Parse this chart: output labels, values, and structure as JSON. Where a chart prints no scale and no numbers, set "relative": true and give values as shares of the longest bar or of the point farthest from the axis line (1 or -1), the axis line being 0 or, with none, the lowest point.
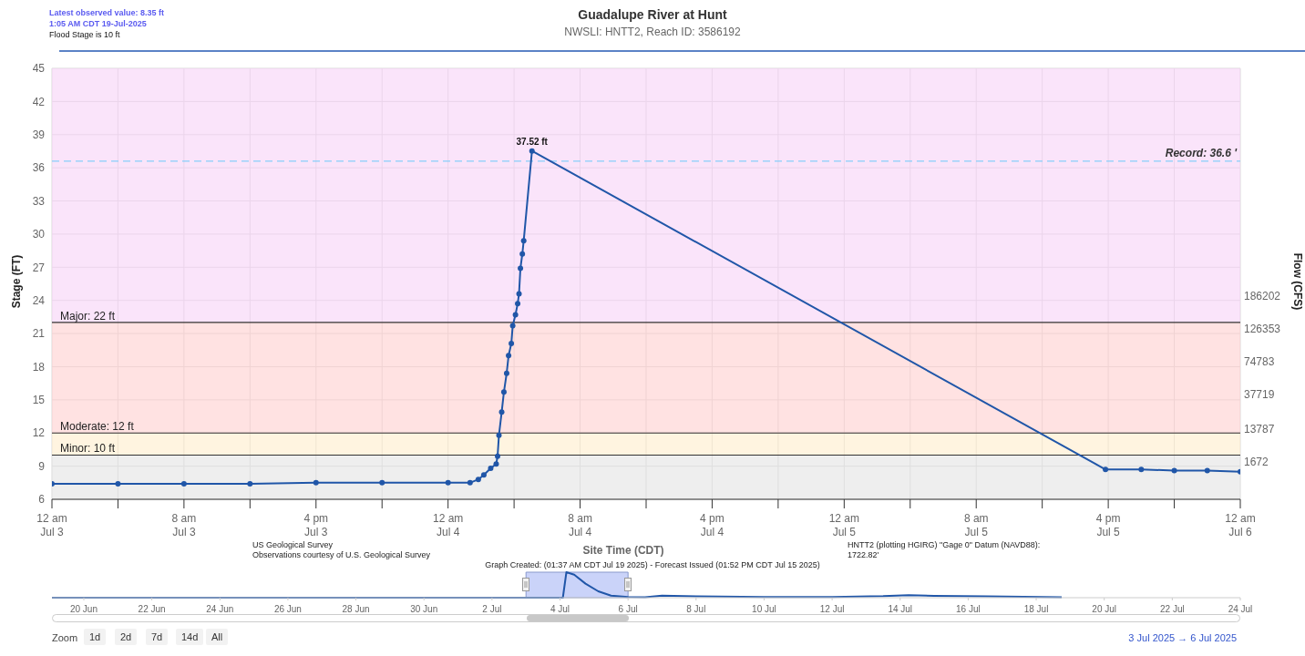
{
  "chart_data": [
    {
      "type": "line",
      "title": "Guadalupe River at Hunt",
      "subtitle": "NWSLI: HNTT2, Reach ID: 3586192",
      "xlabel": "Site Time (CDT)",
      "ylabel": "Stage (FT)",
      "y2label": "Flow (CFS)",
      "xlim": [
        "2025-07-03T00:00",
        "2025-07-06T00:00"
      ],
      "xticks": [
        {
          "value": "2025-07-03T00:00",
          "label": "12 am\nJul 3"
        },
        {
          "value": "2025-07-03T04:00",
          "label": null
        },
        {
          "value": "2025-07-03T08:00",
          "label": "8 am\nJul 3"
        },
        {
          "value": "2025-07-03T12:00",
          "label": null
        },
        {
          "value": "2025-07-03T16:00",
          "label": "4 pm\nJul 3"
        },
        {
          "value": "2025-07-03T20:00",
          "label": null
        },
        {
          "value": "2025-07-04T00:00",
          "label": "12 am\nJul 4"
        },
        {
          "value": "2025-07-04T04:00",
          "label": null
        },
        {
          "value": "2025-07-04T08:00",
          "label": "8 am\nJul 4"
        },
        {
          "value": "2025-07-04T12:00",
          "label": null
        },
        {
          "value": "2025-07-04T16:00",
          "label": "4 pm\nJul 4"
        },
        {
          "value": "2025-07-04T20:00",
          "label": null
        },
        {
          "value": "2025-07-05T00:00",
          "label": "12 am\nJul 5"
        },
        {
          "value": "2025-07-05T04:00",
          "label": null
        },
        {
          "value": "2025-07-05T08:00",
          "label": "8 am\nJul 5"
        },
        {
          "value": "2025-07-05T12:00",
          "label": null
        },
        {
          "value": "2025-07-05T16:00",
          "label": "4 pm\nJul 5"
        },
        {
          "value": "2025-07-05T20:00",
          "label": null
        },
        {
          "value": "2025-07-06T00:00",
          "label": "12 am\nJul 6"
        }
      ],
      "ylim": [
        6,
        45
      ],
      "yticks": [
        6,
        9,
        12,
        15,
        18,
        21,
        24,
        27,
        30,
        33,
        36,
        39,
        42,
        45
      ],
      "grid": true,
      "marker": "circle",
      "line_style": "solid",
      "series": [
        {
          "color": "#2056a8",
          "x": [
            "2025-07-03T00:00",
            "2025-07-03T04:00",
            "2025-07-03T08:00",
            "2025-07-03T12:00",
            "2025-07-03T16:00",
            "2025-07-03T20:00",
            "2025-07-04T00:00",
            "2025-07-04T01:20",
            "2025-07-04T01:50",
            "2025-07-04T02:10",
            "2025-07-04T02:35",
            "2025-07-04T02:55",
            "2025-07-04T03:00",
            "2025-07-04T03:05",
            "2025-07-04T03:15",
            "2025-07-04T03:23",
            "2025-07-04T03:33",
            "2025-07-04T03:40",
            "2025-07-04T03:50",
            "2025-07-04T03:55",
            "2025-07-04T04:05",
            "2025-07-04T04:13",
            "2025-07-04T04:18",
            "2025-07-04T04:23",
            "2025-07-04T04:30",
            "2025-07-04T04:35",
            "2025-07-04T05:05",
            "2025-07-05T15:50",
            "2025-07-05T18:00",
            "2025-07-05T20:00",
            "2025-07-05T22:00",
            "2025-07-06T00:00"
          ],
          "values": [
            7.4,
            7.4,
            7.4,
            7.4,
            7.5,
            7.5,
            7.5,
            7.5,
            7.8,
            8.2,
            8.8,
            9.2,
            9.9,
            11.8,
            13.9,
            15.7,
            17.4,
            19,
            20.1,
            21.7,
            22.7,
            23.7,
            24.6,
            26.9,
            28.2,
            29.4,
            37.52,
            8.7,
            8.7,
            8.6,
            8.6,
            8.5
          ]
        }
      ],
      "bands": [
        {
          "axis": "y",
          "from": 6,
          "to": 10,
          "color": "#e2e2e2"
        },
        {
          "axis": "y",
          "from": 10,
          "to": 12,
          "color": "#ffeccc"
        },
        {
          "axis": "y",
          "from": 12,
          "to": 22,
          "color": "#ffcfcf"
        },
        {
          "axis": "y",
          "from": 22,
          "to": 45,
          "color": "#f7d2f7"
        }
      ],
      "ref_lines": [
        {
          "axis": "y",
          "value": 10,
          "label": "Minor: 10 ft",
          "color": "#333333"
        },
        {
          "axis": "y",
          "value": 12,
          "label": "Moderate: 12 ft",
          "color": "#333333"
        },
        {
          "axis": "y",
          "value": 22,
          "label": "Major: 22 ft",
          "color": "#333333"
        },
        {
          "axis": "y",
          "value": 36.6,
          "label": "Record: 36.6 '",
          "color": "#87cefa",
          "line_style": "dashed"
        }
      ],
      "annotations": [
        {
          "text": "37.52 ft",
          "x": "2025-07-04T05:05",
          "y": 37.52
        },
        "1672",
        "13787",
        "37719",
        "74783",
        "126353",
        "186202",
        "Latest observed value: 8.35 ft",
        "1:05 AM CDT 19-Jul-2025",
        "Flood Stage is 10 ft",
        "US Geological Survey",
        "Observations courtesy of U.S. Geological Survey",
        "HNTT2 (plotting HGIRG) \"Gage 0\" Datum (NAVD88): 1722.82'",
        "Graph Created: (01:37 AM CDT Jul 19 2025) - Forecast Issued (01:52 PM CDT Jul 15 2025)"
      ]
    },
    {
      "type": "line",
      "relative": true,
      "xlim": [
        "2025-06-19T01:30",
        "2025-07-24T00:00"
      ],
      "xticks": [
        {
          "value": "2025-06-20",
          "label": "20 Jun"
        },
        {
          "value": "2025-06-22",
          "label": "22 Jun"
        },
        {
          "value": "2025-06-24",
          "label": "24 Jun"
        },
        {
          "value": "2025-06-26",
          "label": "26 Jun"
        },
        {
          "value": "2025-06-28",
          "label": "28 Jun"
        },
        {
          "value": "2025-06-30",
          "label": "30 Jun"
        },
        {
          "value": "2025-07-02",
          "label": "2 Jul"
        },
        {
          "value": "2025-07-04",
          "label": "4 Jul"
        },
        {
          "value": "2025-07-06",
          "label": "6 Jul"
        },
        {
          "value": "2025-07-08",
          "label": "8 Jul"
        },
        {
          "value": "2025-07-10",
          "label": "10 Jul"
        },
        {
          "value": "2025-07-12",
          "label": "12 Jul"
        },
        {
          "value": "2025-07-14",
          "label": "14 Jul"
        },
        {
          "value": "2025-07-16",
          "label": "16 Jul"
        },
        {
          "value": "2025-07-18",
          "label": "18 Jul"
        },
        {
          "value": "2025-07-20",
          "label": "20 Jul"
        },
        {
          "value": "2025-07-22",
          "label": "22 Jul"
        },
        {
          "value": "2025-07-24",
          "label": "24 Jul"
        }
      ],
      "series": [
        {
          "color": "#2056a8",
          "x": [
            "2025-06-19T01:30",
            "2025-07-04T02:00",
            "2025-07-04T04:30",
            "2025-07-04T10:00",
            "2025-07-04T18:00",
            "2025-07-05T03:00",
            "2025-07-05T12:00",
            "2025-07-06T00:00",
            "2025-07-06T12:00",
            "2025-07-07T00:00",
            "2025-07-08T00:00",
            "2025-07-10T00:00",
            "2025-07-12T00:00",
            "2025-07-13T12:00",
            "2025-07-14T06:00",
            "2025-07-15T00:00",
            "2025-07-16T12:00",
            "2025-07-18T18:00"
          ],
          "values": [
            0,
            0,
            1,
            0.9,
            0.55,
            0.25,
            0.08,
            0.03,
            0.02,
            0.08,
            0.05,
            0.03,
            0.03,
            0.06,
            0.1,
            0.07,
            0.05,
            0.02
          ]
        }
      ],
      "bands": [
        {
          "axis": "x",
          "from": "2025-07-03",
          "to": "2025-07-06",
          "color": "#6680ee"
        }
      ],
      "annotations": [
        "Zoom",
        "1d",
        "2d",
        "7d",
        "14d",
        "All",
        "3 Jul 2025 → 6 Jul 2025"
      ]
    }
  ]
}
